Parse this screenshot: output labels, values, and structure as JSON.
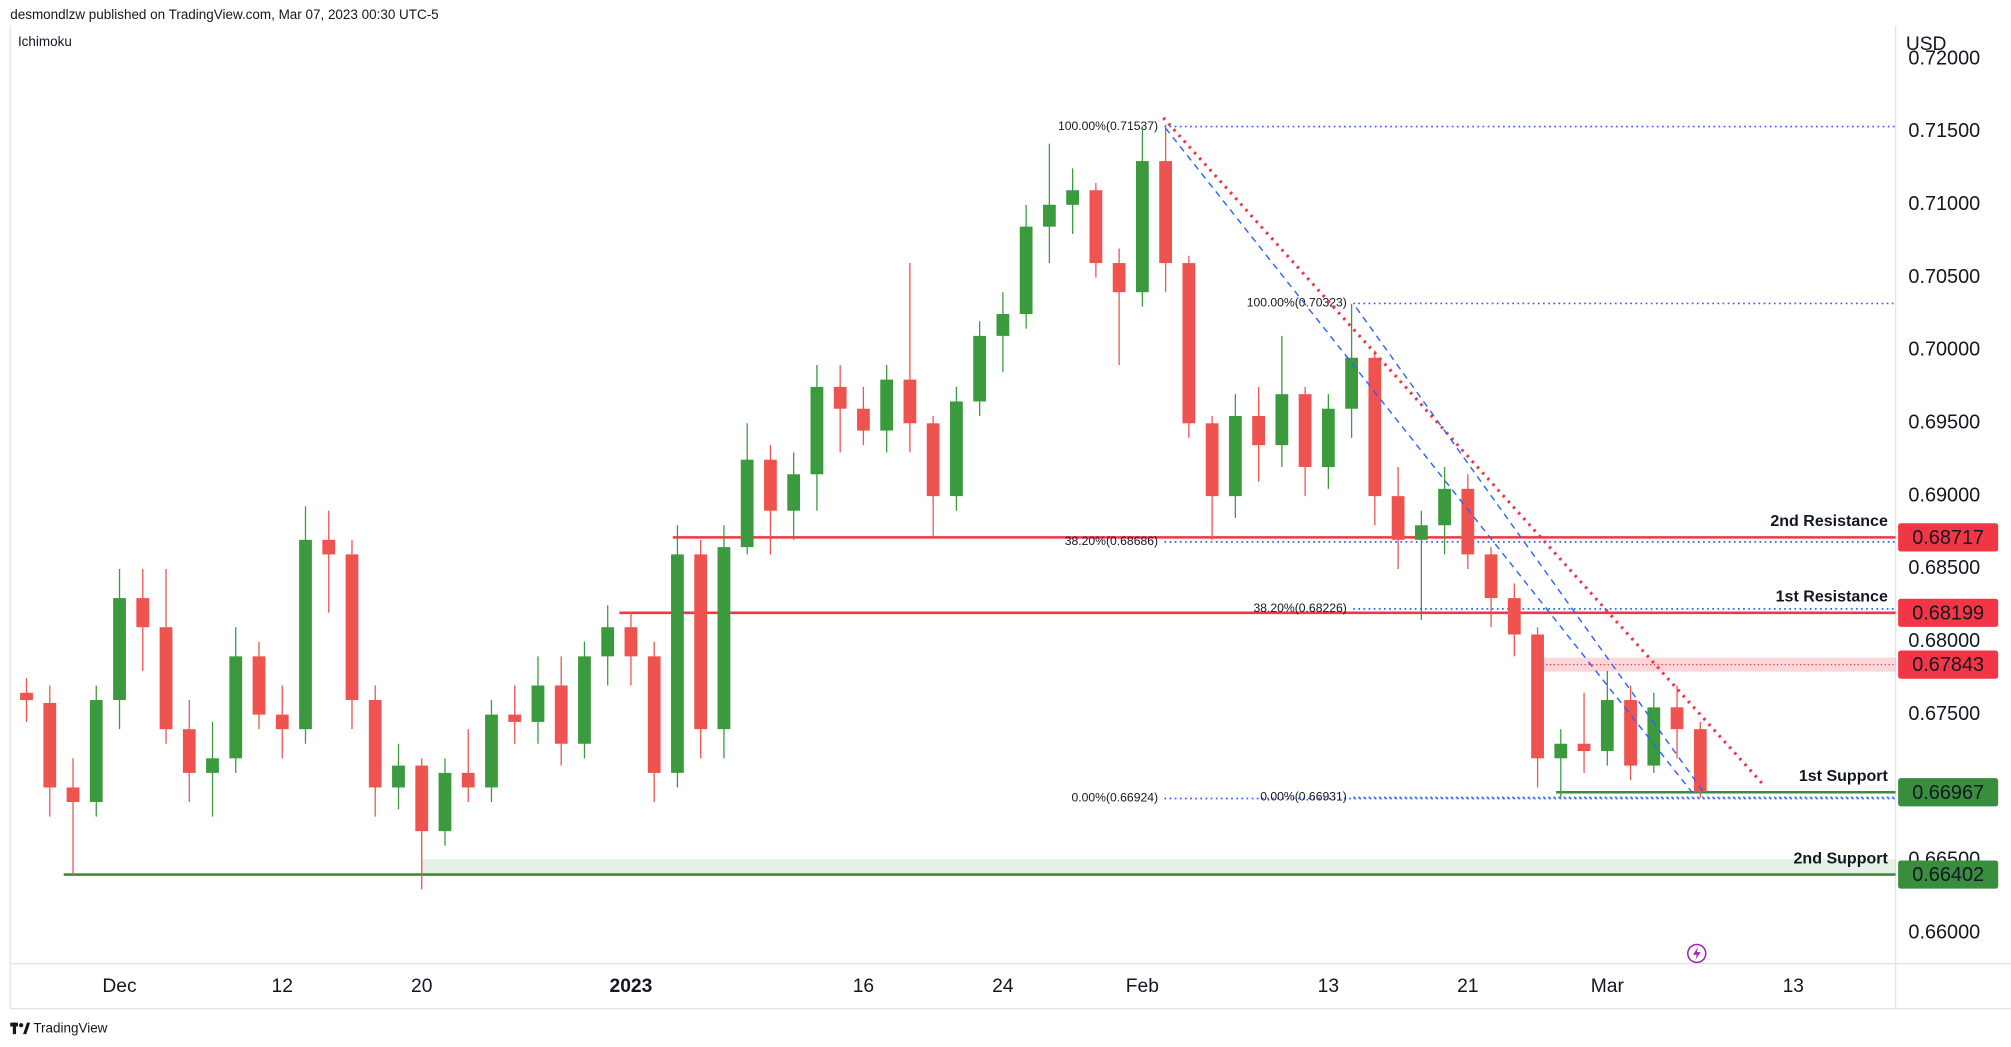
{
  "header": "desmondlzw published on TradingView.com, Mar 07, 2023 00:30 UTC-5",
  "footer": "TradingView",
  "chart_data": {
    "type": "candlestick",
    "indicator": "Ichimoku",
    "currency": "USD",
    "up_color": "#3c9a3e",
    "down_color": "#ef5350",
    "xlim": [
      -4.7,
      76.4
    ],
    "xticks": [
      {
        "value": 0,
        "label": "Dec"
      },
      {
        "value": 7,
        "label": "12"
      },
      {
        "value": 13,
        "label": "20"
      },
      {
        "value": 22,
        "label": "2023",
        "bold": true
      },
      {
        "value": 32,
        "label": "16"
      },
      {
        "value": 38,
        "label": "24"
      },
      {
        "value": 44,
        "label": "Feb"
      },
      {
        "value": 52,
        "label": "13"
      },
      {
        "value": 58,
        "label": "21"
      },
      {
        "value": 64,
        "label": "Mar"
      },
      {
        "value": 72,
        "label": "13"
      }
    ],
    "ylim": [
      0.6579,
      0.7223
    ],
    "yticks": [
      {
        "value": 0.66,
        "label": "0.66000"
      },
      {
        "value": 0.665,
        "label": "0.66500"
      },
      {
        "value": 0.67,
        "label": "0.67000"
      },
      {
        "value": 0.675,
        "label": "0.67500"
      },
      {
        "value": 0.68,
        "label": "0.68000"
      },
      {
        "value": 0.685,
        "label": "0.68500"
      },
      {
        "value": 0.69,
        "label": "0.69000"
      },
      {
        "value": 0.695,
        "label": "0.69500"
      },
      {
        "value": 0.7,
        "label": "0.70000"
      },
      {
        "value": 0.705,
        "label": "0.70500"
      },
      {
        "value": 0.71,
        "label": "0.71000"
      },
      {
        "value": 0.715,
        "label": "0.71500"
      },
      {
        "value": 0.72,
        "label": "0.72000"
      }
    ],
    "grid": false,
    "x": [
      -4,
      -3,
      -2,
      -1,
      0,
      1,
      2,
      3,
      4,
      5,
      6,
      7,
      8,
      9,
      10,
      11,
      12,
      13,
      14,
      15,
      16,
      17,
      18,
      19,
      20,
      21,
      22,
      23,
      24,
      25,
      26,
      27,
      28,
      29,
      30,
      31,
      32,
      33,
      34,
      35,
      36,
      37,
      38,
      39,
      40,
      41,
      42,
      43,
      44,
      45,
      46,
      47,
      48,
      49,
      50,
      51,
      52,
      53,
      54,
      55,
      56,
      57,
      58,
      59,
      60,
      61,
      62,
      63,
      64,
      65,
      66,
      67,
      68
    ],
    "open": [
      0.6765,
      0.6758,
      0.67,
      0.669,
      0.676,
      0.683,
      0.681,
      0.674,
      0.671,
      0.672,
      0.679,
      0.675,
      0.674,
      0.687,
      0.686,
      0.676,
      0.67,
      0.6715,
      0.667,
      0.671,
      0.67,
      0.675,
      0.6745,
      0.677,
      0.673,
      0.679,
      0.681,
      0.679,
      0.671,
      0.686,
      0.674,
      0.6865,
      0.6925,
      0.689,
      0.6915,
      0.6975,
      0.696,
      0.6945,
      0.698,
      0.695,
      0.69,
      0.6965,
      0.701,
      0.7025,
      0.7085,
      0.71,
      0.711,
      0.706,
      0.704,
      0.713,
      0.706,
      0.695,
      0.69,
      0.6955,
      0.6935,
      0.697,
      0.692,
      0.696,
      0.6995,
      0.69,
      0.687,
      0.688,
      0.6905,
      0.686,
      0.683,
      0.6805,
      0.672,
      0.673,
      0.6725,
      0.676,
      0.6715,
      0.6755,
      0.674
    ],
    "high": [
      0.6775,
      0.677,
      0.672,
      0.677,
      0.685,
      0.685,
      0.685,
      0.676,
      0.6745,
      0.681,
      0.68,
      0.677,
      0.6893,
      0.689,
      0.687,
      0.677,
      0.673,
      0.672,
      0.672,
      0.674,
      0.676,
      0.677,
      0.679,
      0.679,
      0.68,
      0.6825,
      0.682,
      0.68,
      0.688,
      0.687,
      0.688,
      0.695,
      0.6935,
      0.693,
      0.699,
      0.699,
      0.6975,
      0.699,
      0.706,
      0.6955,
      0.6975,
      0.702,
      0.704,
      0.71,
      0.7142,
      0.7125,
      0.7115,
      0.707,
      0.7154,
      0.7155,
      0.7065,
      0.6955,
      0.697,
      0.6975,
      0.701,
      0.6975,
      0.697,
      0.7032,
      0.7,
      0.692,
      0.689,
      0.692,
      0.6915,
      0.6865,
      0.684,
      0.681,
      0.674,
      0.6765,
      0.678,
      0.677,
      0.6765,
      0.677,
      0.6745
    ],
    "low": [
      0.6745,
      0.668,
      0.664,
      0.668,
      0.674,
      0.678,
      0.673,
      0.669,
      0.668,
      0.671,
      0.674,
      0.672,
      0.673,
      0.682,
      0.674,
      0.668,
      0.6685,
      0.663,
      0.666,
      0.669,
      0.669,
      0.673,
      0.673,
      0.6715,
      0.672,
      0.677,
      0.677,
      0.669,
      0.67,
      0.672,
      0.672,
      0.686,
      0.686,
      0.687,
      0.689,
      0.693,
      0.6935,
      0.693,
      0.693,
      0.6872,
      0.689,
      0.6955,
      0.6985,
      0.7015,
      0.706,
      0.708,
      0.705,
      0.699,
      0.703,
      0.704,
      0.694,
      0.687,
      0.6885,
      0.691,
      0.692,
      0.69,
      0.6905,
      0.694,
      0.688,
      0.685,
      0.6815,
      0.686,
      0.685,
      0.681,
      0.679,
      0.67,
      0.6693,
      0.671,
      0.6715,
      0.6705,
      0.671,
      0.672,
      0.6693
    ],
    "close": [
      0.676,
      0.67,
      0.669,
      0.676,
      0.683,
      0.681,
      0.674,
      0.671,
      0.672,
      0.679,
      0.675,
      0.674,
      0.687,
      0.686,
      0.676,
      0.67,
      0.6715,
      0.667,
      0.671,
      0.67,
      0.675,
      0.6745,
      0.677,
      0.673,
      0.679,
      0.681,
      0.679,
      0.671,
      0.686,
      0.674,
      0.6865,
      0.6925,
      0.689,
      0.6915,
      0.6975,
      0.696,
      0.6945,
      0.698,
      0.695,
      0.69,
      0.6965,
      0.701,
      0.7025,
      0.7085,
      0.71,
      0.711,
      0.706,
      0.704,
      0.713,
      0.706,
      0.695,
      0.69,
      0.6955,
      0.6935,
      0.697,
      0.692,
      0.696,
      0.6995,
      0.69,
      0.687,
      0.688,
      0.6905,
      0.686,
      0.683,
      0.6805,
      0.672,
      0.673,
      0.6725,
      0.676,
      0.6715,
      0.6755,
      0.674,
      0.6697
    ],
    "levels": [
      {
        "name": "2nd Resistance",
        "value": 0.68717,
        "color": "#f23645",
        "start": 23.8
      },
      {
        "name": "1st Resistance",
        "value": 0.68199,
        "color": "#f23645",
        "start": 21.5
      },
      {
        "value": 0.67843,
        "color": "#f23645",
        "start": 61.2,
        "style": "band"
      },
      {
        "name": "1st Support",
        "value": 0.66967,
        "color": "#388e3c",
        "start": 61.8
      },
      {
        "name": "2nd Support",
        "value": 0.66402,
        "color": "#388e3c",
        "start": -2.4
      }
    ],
    "fibs": [
      {
        "start": 44.95,
        "levels": [
          {
            "value": 0.71537,
            "label": "100.00%(0.71537)"
          },
          {
            "value": 0.68686,
            "label": "38.20%(0.68686)"
          },
          {
            "value": 0.66924,
            "label": "0.00%(0.66924)"
          }
        ]
      },
      {
        "start": 53.07,
        "levels": [
          {
            "value": 0.70323,
            "label": "100.00%(0.70323)"
          },
          {
            "value": 0.68226,
            "label": "38.20%(0.68226)"
          },
          {
            "value": 0.66931,
            "label": "0.00%(0.66931)"
          }
        ]
      }
    ],
    "fib_color": "#2962ff",
    "trendlines": [
      {
        "style": "dotted",
        "color": "#f23645",
        "x": [
          44.9,
          70.7
        ],
        "y": [
          0.71597,
          0.67021
        ]
      },
      {
        "style": "dashed",
        "color": "#2962ff",
        "x": [
          45.0,
          67.7
        ],
        "y": [
          0.71526,
          0.66955
        ]
      },
      {
        "style": "dashed",
        "color": "#2962ff",
        "x": [
          53.2,
          68.2
        ],
        "y": [
          0.70294,
          0.66955
        ]
      }
    ]
  }
}
